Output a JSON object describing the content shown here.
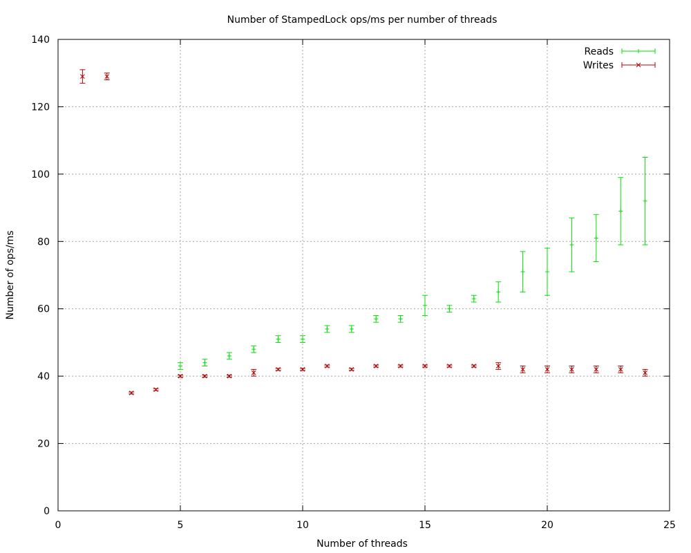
{
  "chart_data": {
    "type": "scatter",
    "title": "Number of StampedLock ops/ms per number of threads",
    "xlabel": "Number of threads",
    "ylabel": "Number of ops/ms",
    "xlim": [
      0,
      25
    ],
    "ylim": [
      0,
      140
    ],
    "xticks": [
      "0",
      "5",
      "10",
      "15",
      "20",
      "25"
    ],
    "yticks": [
      "0",
      "20",
      "40",
      "60",
      "80",
      "100",
      "120",
      "140"
    ],
    "grid": true,
    "legend_position": "top-right",
    "series": [
      {
        "name": "Reads",
        "color": "#00e000",
        "marker": "plus",
        "points": [
          {
            "x": 5,
            "y": 43,
            "ylow": 42,
            "yhigh": 44
          },
          {
            "x": 6,
            "y": 44,
            "ylow": 43,
            "yhigh": 45
          },
          {
            "x": 7,
            "y": 46,
            "ylow": 45,
            "yhigh": 47
          },
          {
            "x": 8,
            "y": 48,
            "ylow": 47,
            "yhigh": 49
          },
          {
            "x": 9,
            "y": 51,
            "ylow": 50,
            "yhigh": 52
          },
          {
            "x": 10,
            "y": 51,
            "ylow": 50,
            "yhigh": 52
          },
          {
            "x": 11,
            "y": 54,
            "ylow": 53,
            "yhigh": 55
          },
          {
            "x": 12,
            "y": 54,
            "ylow": 53,
            "yhigh": 55
          },
          {
            "x": 13,
            "y": 57,
            "ylow": 56,
            "yhigh": 58
          },
          {
            "x": 14,
            "y": 57,
            "ylow": 56,
            "yhigh": 58
          },
          {
            "x": 15,
            "y": 61,
            "ylow": 58,
            "yhigh": 64
          },
          {
            "x": 16,
            "y": 60,
            "ylow": 59,
            "yhigh": 61
          },
          {
            "x": 17,
            "y": 63,
            "ylow": 62,
            "yhigh": 64
          },
          {
            "x": 18,
            "y": 65,
            "ylow": 62,
            "yhigh": 68
          },
          {
            "x": 19,
            "y": 71,
            "ylow": 65,
            "yhigh": 77
          },
          {
            "x": 20,
            "y": 71,
            "ylow": 64,
            "yhigh": 78
          },
          {
            "x": 21,
            "y": 79,
            "ylow": 71,
            "yhigh": 87
          },
          {
            "x": 22,
            "y": 81,
            "ylow": 74,
            "yhigh": 88
          },
          {
            "x": 23,
            "y": 89,
            "ylow": 79,
            "yhigh": 99
          },
          {
            "x": 24,
            "y": 92,
            "ylow": 79,
            "yhigh": 105
          }
        ]
      },
      {
        "name": "Writes",
        "color": "#b00000",
        "marker": "cross",
        "points": [
          {
            "x": 1,
            "y": 129,
            "ylow": 127,
            "yhigh": 131
          },
          {
            "x": 2,
            "y": 129,
            "ylow": 128,
            "yhigh": 130
          },
          {
            "x": 3,
            "y": 35,
            "ylow": 34.7,
            "yhigh": 35.3
          },
          {
            "x": 4,
            "y": 36,
            "ylow": 35.7,
            "yhigh": 36.3
          },
          {
            "x": 5,
            "y": 40,
            "ylow": 39.7,
            "yhigh": 40.3
          },
          {
            "x": 6,
            "y": 40,
            "ylow": 39.7,
            "yhigh": 40.3
          },
          {
            "x": 7,
            "y": 40,
            "ylow": 39.7,
            "yhigh": 40.3
          },
          {
            "x": 8,
            "y": 41,
            "ylow": 40,
            "yhigh": 42
          },
          {
            "x": 9,
            "y": 42,
            "ylow": 41.7,
            "yhigh": 42.3
          },
          {
            "x": 10,
            "y": 42,
            "ylow": 41.7,
            "yhigh": 42.3
          },
          {
            "x": 11,
            "y": 43,
            "ylow": 42.7,
            "yhigh": 43.3
          },
          {
            "x": 12,
            "y": 42,
            "ylow": 41.7,
            "yhigh": 42.3
          },
          {
            "x": 13,
            "y": 43,
            "ylow": 42.7,
            "yhigh": 43.3
          },
          {
            "x": 14,
            "y": 43,
            "ylow": 42.7,
            "yhigh": 43.3
          },
          {
            "x": 15,
            "y": 43,
            "ylow": 42.7,
            "yhigh": 43.3
          },
          {
            "x": 16,
            "y": 43,
            "ylow": 42.7,
            "yhigh": 43.3
          },
          {
            "x": 17,
            "y": 43,
            "ylow": 42.7,
            "yhigh": 43.3
          },
          {
            "x": 18,
            "y": 43,
            "ylow": 42,
            "yhigh": 44
          },
          {
            "x": 19,
            "y": 42,
            "ylow": 41,
            "yhigh": 43
          },
          {
            "x": 20,
            "y": 42,
            "ylow": 41,
            "yhigh": 43
          },
          {
            "x": 21,
            "y": 42,
            "ylow": 41,
            "yhigh": 43
          },
          {
            "x": 22,
            "y": 42,
            "ylow": 41,
            "yhigh": 43
          },
          {
            "x": 23,
            "y": 42,
            "ylow": 41,
            "yhigh": 43
          },
          {
            "x": 24,
            "y": 41,
            "ylow": 40,
            "yhigh": 42
          }
        ]
      }
    ]
  }
}
